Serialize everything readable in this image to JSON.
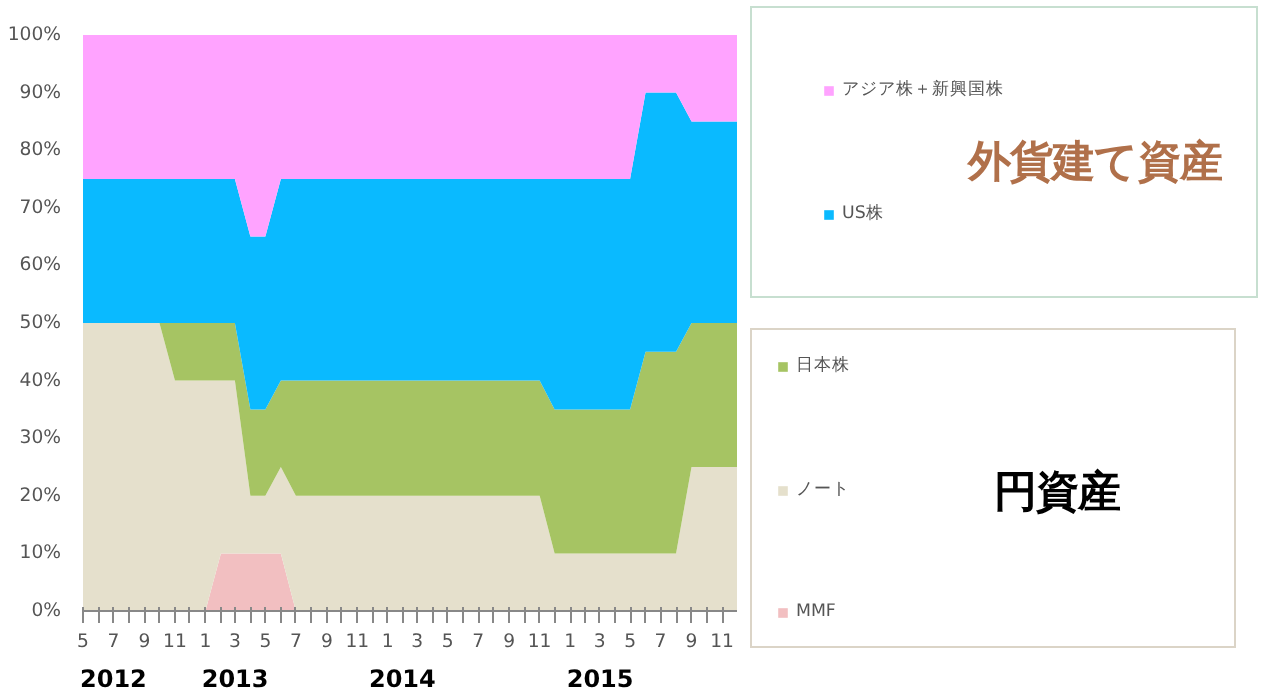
{
  "chart_data": {
    "type": "area",
    "stacked": true,
    "legend": "right",
    "x": [
      "2012-05",
      "2012-06",
      "2012-07",
      "2012-08",
      "2012-09",
      "2012-10",
      "2012-11",
      "2012-12",
      "2013-01",
      "2013-02",
      "2013-03",
      "2013-04",
      "2013-05",
      "2013-06",
      "2013-07",
      "2013-08",
      "2013-09",
      "2013-10",
      "2013-11",
      "2013-12",
      "2014-01",
      "2014-02",
      "2014-03",
      "2014-04",
      "2014-05",
      "2014-06",
      "2014-07",
      "2014-08",
      "2014-09",
      "2014-10",
      "2014-11",
      "2014-12",
      "2015-01",
      "2015-02",
      "2015-03",
      "2015-04",
      "2015-05",
      "2015-06",
      "2015-07",
      "2015-08",
      "2015-09",
      "2015-10",
      "2015-11",
      "2015-12"
    ],
    "xlim": [
      "2012-05",
      "2015-12"
    ],
    "xticks": [
      {
        "value": "2012-05",
        "label": "5"
      },
      {
        "value": "2012-06",
        "label": null
      },
      {
        "value": "2012-07",
        "label": "7"
      },
      {
        "value": "2012-08",
        "label": null
      },
      {
        "value": "2012-09",
        "label": "9"
      },
      {
        "value": "2012-10",
        "label": null
      },
      {
        "value": "2012-11",
        "label": "11"
      },
      {
        "value": "2012-12",
        "label": null
      },
      {
        "value": "2013-01",
        "label": "1"
      },
      {
        "value": "2013-02",
        "label": null
      },
      {
        "value": "2013-03",
        "label": "3"
      },
      {
        "value": "2013-04",
        "label": null
      },
      {
        "value": "2013-05",
        "label": "5"
      },
      {
        "value": "2013-06",
        "label": null
      },
      {
        "value": "2013-07",
        "label": "7"
      },
      {
        "value": "2013-08",
        "label": null
      },
      {
        "value": "2013-09",
        "label": "9"
      },
      {
        "value": "2013-10",
        "label": null
      },
      {
        "value": "2013-11",
        "label": "11"
      },
      {
        "value": "2013-12",
        "label": null
      },
      {
        "value": "2014-01",
        "label": "1"
      },
      {
        "value": "2014-02",
        "label": null
      },
      {
        "value": "2014-03",
        "label": "3"
      },
      {
        "value": "2014-04",
        "label": null
      },
      {
        "value": "2014-05",
        "label": "5"
      },
      {
        "value": "2014-06",
        "label": null
      },
      {
        "value": "2014-07",
        "label": "7"
      },
      {
        "value": "2014-08",
        "label": null
      },
      {
        "value": "2014-09",
        "label": "9"
      },
      {
        "value": "2014-10",
        "label": null
      },
      {
        "value": "2014-11",
        "label": "11"
      },
      {
        "value": "2014-12",
        "label": null
      },
      {
        "value": "2015-01",
        "label": "1"
      },
      {
        "value": "2015-02",
        "label": null
      },
      {
        "value": "2015-03",
        "label": "3"
      },
      {
        "value": "2015-04",
        "label": null
      },
      {
        "value": "2015-05",
        "label": "5"
      },
      {
        "value": "2015-06",
        "label": null
      },
      {
        "value": "2015-07",
        "label": "7"
      },
      {
        "value": "2015-08",
        "label": null
      },
      {
        "value": "2015-09",
        "label": "9"
      },
      {
        "value": "2015-10",
        "label": null
      },
      {
        "value": "2015-11",
        "label": "11"
      }
    ],
    "ylim": [
      0,
      100
    ],
    "yticks": [
      {
        "value": 0,
        "label": "0%"
      },
      {
        "value": 10,
        "label": "10%"
      },
      {
        "value": 20,
        "label": "20%"
      },
      {
        "value": 30,
        "label": "30%"
      },
      {
        "value": 40,
        "label": "40%"
      },
      {
        "value": 50,
        "label": "50%"
      },
      {
        "value": 60,
        "label": "60%"
      },
      {
        "value": 70,
        "label": "70%"
      },
      {
        "value": 80,
        "label": "80%"
      },
      {
        "value": 90,
        "label": "90%"
      },
      {
        "value": 100,
        "label": "100%"
      }
    ],
    "series": [
      {
        "name": "MMF",
        "color": "#f2bfc1",
        "values": [
          0,
          0,
          0,
          0,
          0,
          0,
          0,
          0,
          0,
          10,
          10,
          10,
          10,
          10,
          0,
          0,
          0,
          0,
          0,
          0,
          0,
          0,
          0,
          0,
          0,
          0,
          0,
          0,
          0,
          0,
          0,
          0,
          0,
          0,
          0,
          0,
          0,
          0,
          0,
          0,
          0,
          0,
          0,
          0
        ]
      },
      {
        "name": "ノート",
        "color": "#e5e0cc",
        "values": [
          50,
          50,
          50,
          50,
          50,
          50,
          40,
          40,
          40,
          30,
          30,
          10,
          10,
          15,
          20,
          20,
          20,
          20,
          20,
          20,
          20,
          20,
          20,
          20,
          20,
          20,
          20,
          20,
          20,
          20,
          20,
          10,
          10,
          10,
          10,
          10,
          10,
          10,
          10,
          10,
          25,
          25,
          25,
          25
        ]
      },
      {
        "name": "日本株",
        "color": "#a6c463",
        "values": [
          0,
          0,
          0,
          0,
          0,
          0,
          10,
          10,
          10,
          10,
          10,
          15,
          15,
          15,
          20,
          20,
          20,
          20,
          20,
          20,
          20,
          20,
          20,
          20,
          20,
          20,
          20,
          20,
          20,
          20,
          20,
          25,
          25,
          25,
          25,
          25,
          25,
          35,
          35,
          35,
          25,
          25,
          25,
          25
        ]
      },
      {
        "name": "US株",
        "color": "#0abaff",
        "values": [
          25,
          25,
          25,
          25,
          25,
          25,
          25,
          25,
          25,
          25,
          25,
          30,
          30,
          35,
          35,
          35,
          35,
          35,
          35,
          35,
          35,
          35,
          35,
          35,
          35,
          35,
          35,
          35,
          35,
          35,
          35,
          40,
          40,
          40,
          40,
          40,
          40,
          45,
          45,
          45,
          35,
          35,
          35,
          35
        ]
      },
      {
        "name": "アジア株＋新興国株",
        "color": "#ffa3ff",
        "values": [
          25,
          25,
          25,
          25,
          25,
          25,
          25,
          25,
          25,
          25,
          25,
          35,
          35,
          25,
          25,
          25,
          25,
          25,
          25,
          25,
          25,
          25,
          25,
          25,
          25,
          25,
          25,
          25,
          25,
          25,
          25,
          25,
          25,
          25,
          25,
          25,
          25,
          10,
          10,
          10,
          15,
          15,
          15,
          15
        ]
      }
    ],
    "annotations": [
      "外貨建て資産",
      "円資産",
      "2012",
      "2013",
      "2014",
      "2015"
    ]
  }
}
